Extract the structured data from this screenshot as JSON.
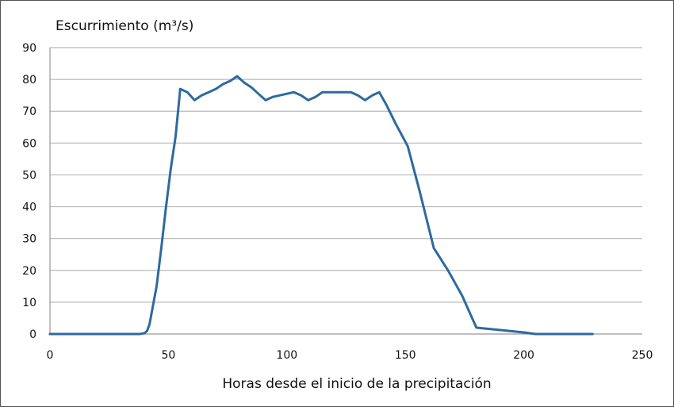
{
  "chart_data": {
    "type": "line",
    "ylabel": "Escurrimiento (m³/s)",
    "xlabel": "Horas desde el inicio de la precipitación",
    "xlim": [
      0,
      250
    ],
    "ylim": [
      0,
      90
    ],
    "xticks": [
      "0",
      "50",
      "100",
      "150",
      "200",
      "250"
    ],
    "yticks": [
      "0",
      "10",
      "20",
      "30",
      "40",
      "50",
      "60",
      "70",
      "80",
      "90"
    ],
    "grid": "horizontal",
    "line_color": "#2e6a9e",
    "series": [
      {
        "x": [
          0,
          38,
          40,
          41,
          42,
          43,
          45,
          47,
          49,
          51,
          53,
          55,
          58,
          61,
          64,
          67,
          70,
          73,
          76,
          79,
          82,
          85,
          88,
          91,
          94,
          97,
          100,
          103,
          106,
          109,
          112,
          115,
          118,
          121,
          124,
          127,
          130,
          133,
          136,
          139,
          142,
          146,
          151,
          156,
          162,
          168,
          174,
          180,
          200,
          205,
          229
        ],
        "y": [
          0,
          0,
          0.3,
          1,
          3,
          7,
          15,
          27,
          40,
          52,
          62,
          77,
          76,
          73.5,
          75,
          76,
          77,
          78.5,
          79.5,
          81,
          79,
          77.5,
          75.5,
          73.5,
          74.5,
          75,
          75.5,
          76,
          75,
          73.5,
          74.5,
          76,
          76,
          76,
          76,
          76,
          75,
          73.5,
          75,
          76,
          72,
          66,
          59,
          45,
          27,
          20,
          12,
          2,
          0.5,
          0,
          0
        ]
      }
    ]
  }
}
